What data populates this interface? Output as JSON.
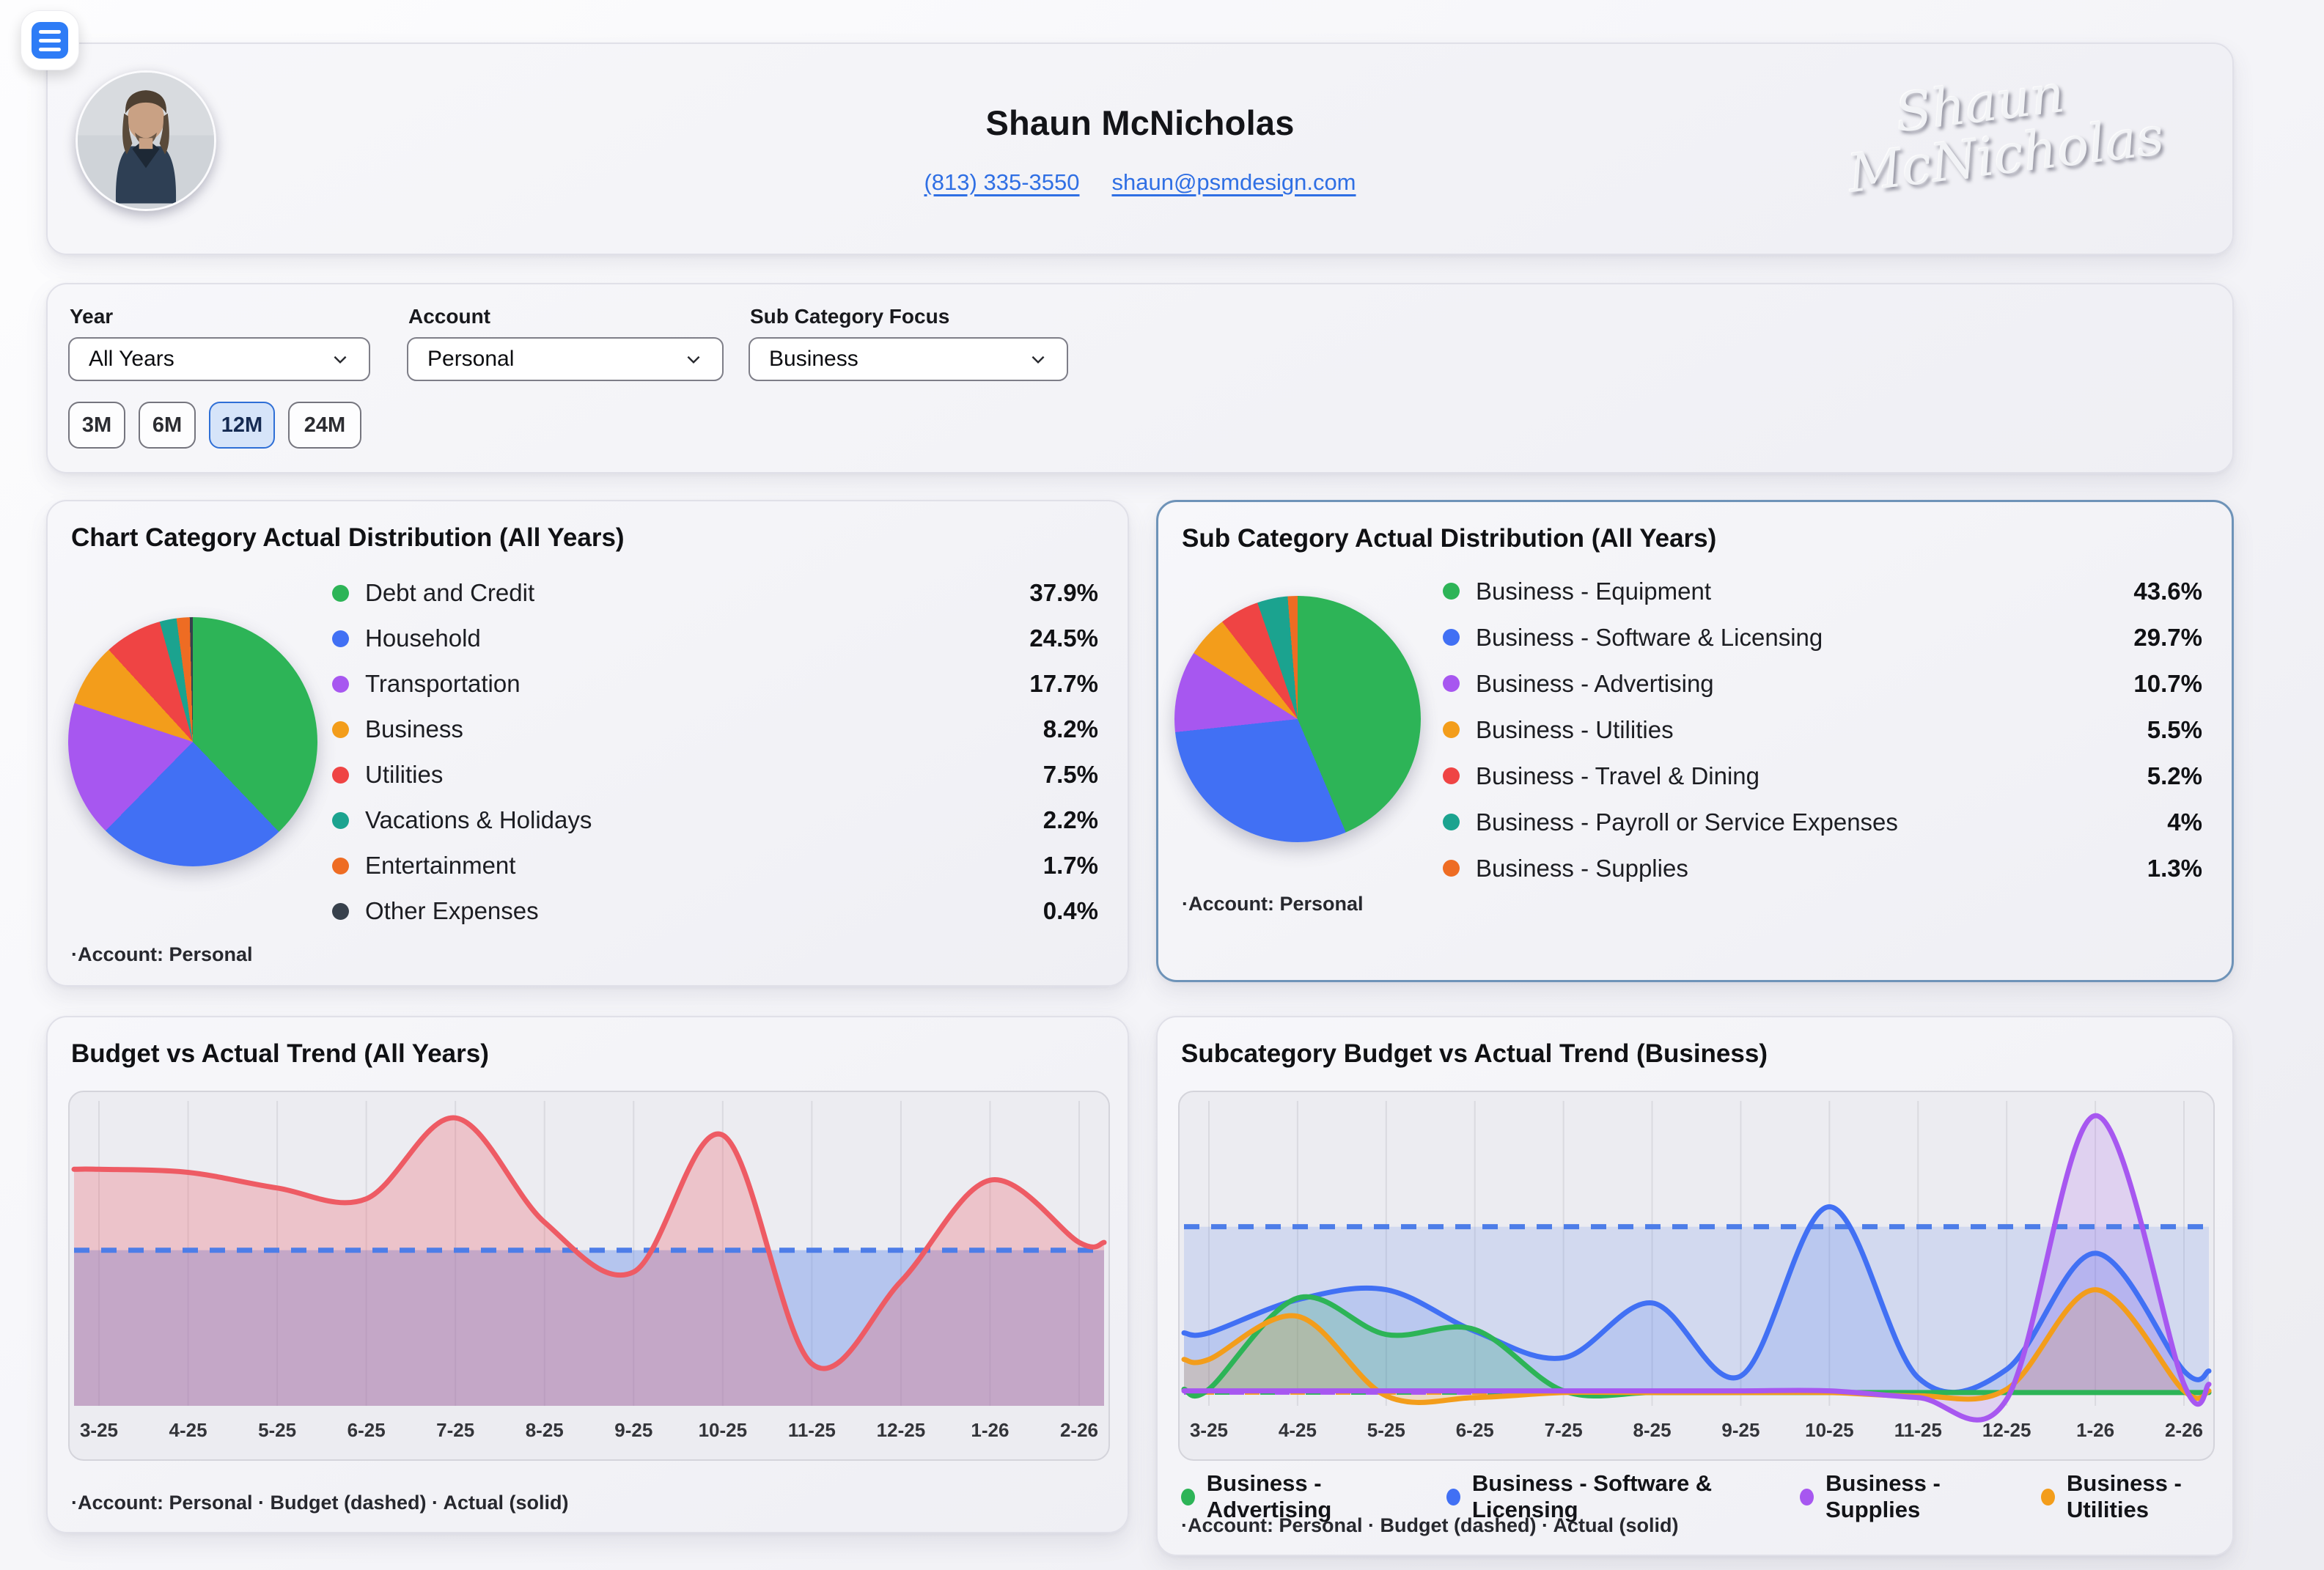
{
  "header": {
    "name": "Shaun McNicholas",
    "phone": "(813) 335-3550",
    "email": "shaun@psmdesign.com",
    "signature_line1": "Shaun",
    "signature_line2": "McNicholas"
  },
  "filters": {
    "year": {
      "label": "Year",
      "value": "All Years"
    },
    "account": {
      "label": "Account",
      "value": "Personal"
    },
    "subcategory": {
      "label": "Sub Category Focus",
      "value": "Business"
    }
  },
  "time_ranges": [
    {
      "label": "3M",
      "active": false
    },
    {
      "label": "6M",
      "active": false
    },
    {
      "label": "12M",
      "active": true
    },
    {
      "label": "24M",
      "active": false
    }
  ],
  "cards": {
    "category_pie": {
      "title": "Chart Category Actual Distribution (All Years)",
      "footer": "·Account: Personal"
    },
    "subcategory_pie": {
      "title": "Sub Category Actual Distribution (All Years)",
      "footer": "·Account: Personal"
    },
    "trend": {
      "title": "Budget vs Actual Trend (All Years)",
      "footer": "·Account: Personal · Budget (dashed) · Actual (solid)"
    },
    "sub_trend": {
      "title": "Subcategory Budget vs Actual Trend (Business)",
      "footer": "·Account: Personal · Budget (dashed) · Actual (solid)"
    }
  },
  "colors": {
    "accent_blue": "#2e7cf6",
    "link": "#2f6fe4",
    "budget_line": "#4d7de8",
    "actual_red": "#ee5b64",
    "active_range_bg": "#d6e4f9",
    "active_range_border": "#2f6fd6",
    "subcategory_card_border": "#6e93b8"
  },
  "chart_data": [
    {
      "id": "category_pie",
      "type": "pie",
      "title": "Chart Category Actual Distribution (All Years)",
      "slices": [
        {
          "label": "Debt and Credit",
          "value": 37.9,
          "display": "37.9%",
          "color": "#2db457"
        },
        {
          "label": "Household",
          "value": 24.5,
          "display": "24.5%",
          "color": "#4170f4"
        },
        {
          "label": "Transportation",
          "value": 17.7,
          "display": "17.7%",
          "color": "#a757f0"
        },
        {
          "label": "Business",
          "value": 8.2,
          "display": "8.2%",
          "color": "#f39d1b"
        },
        {
          "label": "Utilities",
          "value": 7.5,
          "display": "7.5%",
          "color": "#ef4444"
        },
        {
          "label": "Vacations & Holidays",
          "value": 2.2,
          "display": "2.2%",
          "color": "#1ba38f"
        },
        {
          "label": "Entertainment",
          "value": 1.7,
          "display": "1.7%",
          "color": "#ee6c23"
        },
        {
          "label": "Other Expenses",
          "value": 0.4,
          "display": "0.4%",
          "color": "#37404c"
        }
      ]
    },
    {
      "id": "subcategory_pie",
      "type": "pie",
      "title": "Sub Category Actual Distribution (All Years)",
      "slices": [
        {
          "label": "Business - Equipment",
          "value": 43.6,
          "display": "43.6%",
          "color": "#2db457"
        },
        {
          "label": "Business - Software & Licensing",
          "value": 29.7,
          "display": "29.7%",
          "color": "#4170f4"
        },
        {
          "label": "Business - Advertising",
          "value": 10.7,
          "display": "10.7%",
          "color": "#a757f0"
        },
        {
          "label": "Business - Utilities",
          "value": 5.5,
          "display": "5.5%",
          "color": "#f39d1b"
        },
        {
          "label": "Business - Travel & Dining",
          "value": 5.2,
          "display": "5.2%",
          "color": "#ef4444"
        },
        {
          "label": "Business - Payroll or Service Expenses",
          "value": 4,
          "display": "4%",
          "color": "#1ba38f"
        },
        {
          "label": "Business - Supplies",
          "value": 1.3,
          "display": "1.3%",
          "color": "#ee6c23"
        }
      ]
    },
    {
      "id": "trend",
      "type": "area",
      "title": "Budget vs Actual Trend (All Years)",
      "x": [
        "3-25",
        "4-25",
        "5-25",
        "6-25",
        "7-25",
        "8-25",
        "9-25",
        "10-25",
        "11-25",
        "12-25",
        "1-26",
        "2-26"
      ],
      "note": "values are relative to budget = 1.0 (dashed line)",
      "ylim": [
        0,
        1.95
      ],
      "budget": 1.0,
      "budget_color": "#4d7de8",
      "budget_fill": "rgba(93,133,235,0.38)",
      "series": [
        {
          "name": "Actual",
          "color": "#ee5b64",
          "fill": "rgba(238,91,100,0.28)",
          "width": 7,
          "z": 1,
          "values": [
            1.52,
            1.5,
            1.4,
            1.33,
            1.85,
            1.18,
            0.86,
            1.74,
            0.27,
            0.8,
            1.45,
            1.05
          ]
        }
      ]
    },
    {
      "id": "sub_trend",
      "type": "line",
      "title": "Subcategory Budget vs Actual Trend (Business)",
      "x": [
        "3-25",
        "4-25",
        "5-25",
        "6-25",
        "7-25",
        "8-25",
        "9-25",
        "10-25",
        "11-25",
        "12-25",
        "1-26",
        "2-26"
      ],
      "note": "values are relative to budget = 1.0 (dashed line)",
      "ylim": [
        -0.08,
        1.75
      ],
      "budget": 1.0,
      "budget_color": "#4d7de8",
      "budget_fill": "rgba(93,133,235,0.18)",
      "zero_budget_dash_colors": [
        "#a757f0",
        "#f39d1b",
        "#2db457"
      ],
      "series": [
        {
          "name": "Business - Advertising",
          "color": "#2db457",
          "fill": "rgba(45,180,87,0.20)",
          "width": 7,
          "z": 2,
          "values": [
            0.02,
            0.57,
            0.35,
            0.38,
            0.01,
            0.0,
            0.0,
            0.0,
            0.0,
            0.0,
            0.0,
            0.0
          ]
        },
        {
          "name": "Business - Software & Licensing",
          "color": "#4170f4",
          "fill": "rgba(65,112,244,0.16)",
          "width": 7,
          "z": 1,
          "values": [
            0.36,
            0.56,
            0.62,
            0.37,
            0.21,
            0.54,
            0.1,
            1.12,
            0.09,
            0.14,
            0.84,
            0.13
          ]
        },
        {
          "name": "Business - Supplies",
          "color": "#a757f0",
          "fill": "rgba(167,87,240,0.18)",
          "width": 7,
          "z": 4,
          "values": [
            0.01,
            0.01,
            0.01,
            0.01,
            0.01,
            0.01,
            0.01,
            0.01,
            -0.03,
            -0.04,
            1.67,
            0.05
          ]
        },
        {
          "name": "Business - Utilities",
          "color": "#f39d1b",
          "fill": "rgba(243,157,27,0.20)",
          "width": 7,
          "z": 3,
          "values": [
            0.2,
            0.46,
            -0.02,
            -0.03,
            0.0,
            0.0,
            0.0,
            0.0,
            -0.02,
            0.02,
            0.62,
            0.01
          ]
        }
      ]
    }
  ]
}
